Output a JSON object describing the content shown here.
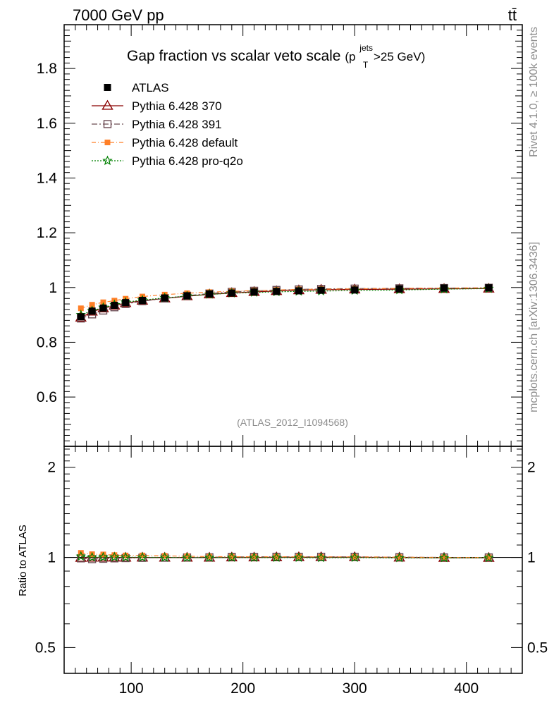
{
  "header": {
    "energy_label": "7000 GeV pp",
    "process_label": "tt̄"
  },
  "side_labels": {
    "rivet": "Rivet 4.1.0, ≥ 100k events",
    "mcplots": "mcplots.cern.ch [arXiv:1306.3436]"
  },
  "watermark": "(ATLAS_2012_I1094568)",
  "colors": {
    "atlas": "#000000",
    "p370": "#8b0000",
    "p391": "#6b4a52",
    "pdefault": "#ff7f27",
    "pq2o": "#008000",
    "grey_text": "#8c8c8c"
  },
  "chart_data": [
    {
      "type": "scatter",
      "panel": "main",
      "title": "Gap fraction vs scalar veto scale",
      "title_suffix": {
        "open": "(p",
        "sup": "jets",
        "sub": "T",
        "close": ">25 GeV)"
      },
      "xlabel": "",
      "ylabel": "",
      "xlim": [
        40,
        450
      ],
      "ylim": [
        0.42,
        1.96
      ],
      "x_ticks": [
        100,
        200,
        300,
        400
      ],
      "y_ticks": [
        0.6,
        0.8,
        1.0,
        1.2,
        1.4,
        1.6,
        1.8
      ],
      "y_tick_labels": [
        "0.6",
        "0.8",
        "1",
        "1.2",
        "1.4",
        "1.6",
        "1.8"
      ],
      "x": [
        55,
        65,
        75,
        85,
        95,
        110,
        130,
        150,
        170,
        190,
        210,
        230,
        250,
        270,
        300,
        340,
        380,
        420
      ],
      "series": [
        {
          "key": "atlas",
          "name": "ATLAS",
          "marker": "filled-square",
          "line": "none",
          "values": [
            0.893,
            0.914,
            0.925,
            0.935,
            0.945,
            0.953,
            0.962,
            0.97,
            0.977,
            0.98,
            0.984,
            0.986,
            0.988,
            0.99,
            0.991,
            0.995,
            0.998,
            0.999
          ]
        },
        {
          "key": "p370",
          "name": "Pythia 6.428 370",
          "marker": "open-triangle",
          "line": "solid",
          "values": [
            0.89,
            0.912,
            0.924,
            0.934,
            0.943,
            0.952,
            0.96,
            0.968,
            0.975,
            0.98,
            0.984,
            0.987,
            0.99,
            0.992,
            0.993,
            0.994,
            0.995,
            0.996
          ]
        },
        {
          "key": "p391",
          "name": "Pythia 6.428 391",
          "marker": "open-square",
          "line": "dash-dot",
          "values": [
            0.887,
            0.902,
            0.916,
            0.928,
            0.94,
            0.95,
            0.96,
            0.97,
            0.978,
            0.984,
            0.988,
            0.991,
            0.993,
            0.995,
            0.996,
            0.997,
            0.998,
            0.999
          ]
        },
        {
          "key": "pdefault",
          "name": "Pythia 6.428 default",
          "marker": "filled-square-small",
          "line": "dash-dot-fine",
          "values": [
            0.924,
            0.937,
            0.946,
            0.952,
            0.959,
            0.967,
            0.974,
            0.979,
            0.983,
            0.986,
            0.989,
            0.991,
            0.993,
            0.994,
            0.995,
            0.997,
            0.998,
            0.999
          ]
        },
        {
          "key": "pq2o",
          "name": "Pythia 6.428 pro-q2o",
          "marker": "open-star",
          "line": "dotted",
          "values": [
            0.9,
            0.915,
            0.927,
            0.937,
            0.946,
            0.954,
            0.962,
            0.969,
            0.975,
            0.979,
            0.982,
            0.984,
            0.986,
            0.987,
            0.989,
            0.991,
            0.994,
            0.996
          ]
        }
      ]
    },
    {
      "type": "scatter",
      "panel": "ratio",
      "ylabel": "Ratio to ATLAS",
      "xlim": [
        40,
        450
      ],
      "ylim": [
        0.41,
        2.35
      ],
      "y_scale": "log",
      "y_ticks": [
        0.5,
        1,
        2
      ],
      "y_tick_labels": [
        "0.5",
        "1",
        "2"
      ],
      "x_ticks": [
        100,
        200,
        300,
        400
      ],
      "x_tick_labels": [
        "100",
        "200",
        "300",
        "400"
      ],
      "x": [
        55,
        65,
        75,
        85,
        95,
        110,
        130,
        150,
        170,
        190,
        210,
        230,
        250,
        270,
        300,
        340,
        380,
        420
      ],
      "series": [
        {
          "key": "p370",
          "values": [
            0.997,
            0.998,
            0.999,
            0.999,
            0.998,
            0.999,
            0.998,
            0.998,
            0.998,
            1.0,
            1.0,
            1.001,
            1.002,
            1.002,
            1.002,
            0.999,
            0.997,
            0.997
          ]
        },
        {
          "key": "p391",
          "values": [
            0.993,
            0.987,
            0.99,
            0.993,
            0.995,
            0.997,
            0.998,
            1.0,
            1.001,
            1.004,
            1.004,
            1.005,
            1.005,
            1.005,
            1.005,
            1.002,
            1.0,
            1.0
          ]
        },
        {
          "key": "pdefault",
          "values": [
            1.035,
            1.025,
            1.023,
            1.018,
            1.015,
            1.015,
            1.012,
            1.009,
            1.006,
            1.006,
            1.005,
            1.005,
            1.005,
            1.004,
            1.004,
            1.002,
            1.0,
            1.0
          ]
        },
        {
          "key": "pq2o",
          "values": [
            1.008,
            1.001,
            1.002,
            1.002,
            1.001,
            1.001,
            1.0,
            0.999,
            0.998,
            0.999,
            0.998,
            0.998,
            0.998,
            0.997,
            0.998,
            0.996,
            0.996,
            0.997
          ]
        }
      ]
    }
  ]
}
